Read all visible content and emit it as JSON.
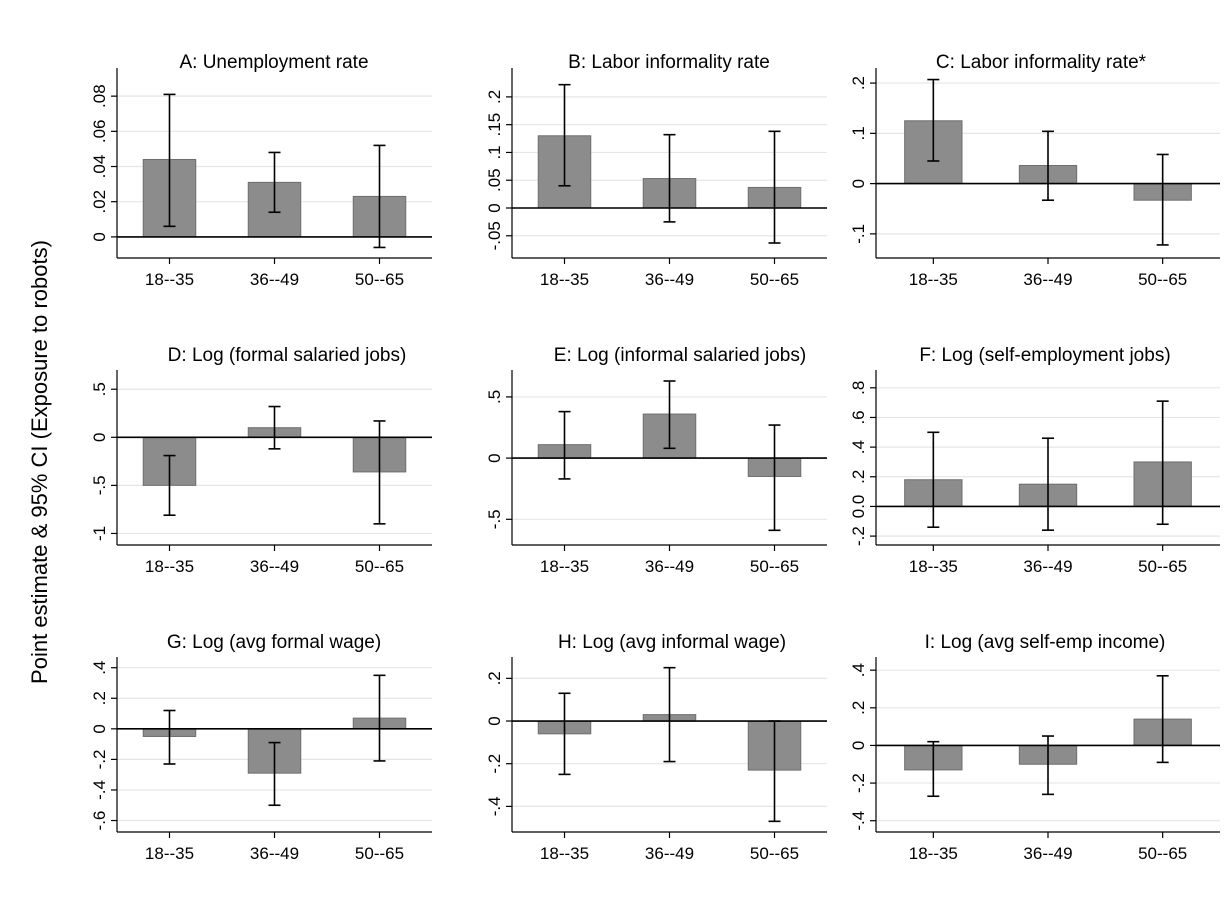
{
  "figure": {
    "ylabel": "Point estimate & 95% CI (Exposure to robots)"
  },
  "chart_data": [
    {
      "type": "bar",
      "title": "A: Unemployment rate",
      "categories": [
        "18--35",
        "36--49",
        "50--65"
      ],
      "values": [
        0.044,
        0.031,
        0.023
      ],
      "ci_lower": [
        0.006,
        0.014,
        -0.006
      ],
      "ci_upper": [
        0.081,
        0.048,
        0.052
      ],
      "yticks": [
        0,
        0.02,
        0.04,
        0.06,
        0.08
      ],
      "yticklabels": [
        "0",
        ".02",
        ".04",
        ".06",
        ".08"
      ],
      "ylim": [
        -0.012,
        0.096
      ],
      "grid": true
    },
    {
      "type": "bar",
      "title": "B: Labor informality rate",
      "categories": [
        "18--35",
        "36--49",
        "50--65"
      ],
      "values": [
        0.13,
        0.053,
        0.037
      ],
      "ci_lower": [
        0.04,
        -0.025,
        -0.063
      ],
      "ci_upper": [
        0.222,
        0.132,
        0.138
      ],
      "yticks": [
        -0.05,
        0,
        0.05,
        0.1,
        0.15,
        0.2
      ],
      "yticklabels": [
        "-.05",
        "0",
        ".05",
        ".1",
        ".15",
        ".2"
      ],
      "ylim": [
        -0.09,
        0.252
      ],
      "grid": true
    },
    {
      "type": "bar",
      "title": "C: Labor informality rate*",
      "categories": [
        "18--35",
        "36--49",
        "50--65"
      ],
      "values": [
        0.125,
        0.036,
        -0.033
      ],
      "ci_lower": [
        0.045,
        -0.033,
        -0.122
      ],
      "ci_upper": [
        0.207,
        0.104,
        0.058
      ],
      "yticks": [
        -0.1,
        0,
        0.1,
        0.2
      ],
      "yticklabels": [
        "-.1",
        "0",
        ".1",
        ".2"
      ],
      "ylim": [
        -0.148,
        0.23
      ],
      "grid": true
    },
    {
      "type": "bar",
      "title": "D: Log (formal salaried jobs)",
      "categories": [
        "18--35",
        "36--49",
        "50--65"
      ],
      "values": [
        -0.5,
        0.1,
        -0.36
      ],
      "ci_lower": [
        -0.81,
        -0.12,
        -0.9
      ],
      "ci_upper": [
        -0.19,
        0.32,
        0.17
      ],
      "yticks": [
        -1,
        -0.5,
        0,
        0.5
      ],
      "yticklabels": [
        "-1",
        "-.5",
        "0",
        ".5"
      ],
      "ylim": [
        -1.12,
        0.7
      ],
      "grid": true
    },
    {
      "type": "bar",
      "title": "E: Log (informal salaried jobs)",
      "categories": [
        "18--35",
        "36--49",
        "50--65"
      ],
      "values": [
        0.11,
        0.36,
        -0.15
      ],
      "ci_lower": [
        -0.17,
        0.08,
        -0.59
      ],
      "ci_upper": [
        0.38,
        0.63,
        0.27
      ],
      "yticks": [
        -0.5,
        0,
        0.5
      ],
      "yticklabels": [
        "-.5",
        "0",
        ".5"
      ],
      "ylim": [
        -0.71,
        0.72
      ],
      "grid": true
    },
    {
      "type": "bar",
      "title": "F: Log (self-employment jobs)",
      "categories": [
        "18--35",
        "36--49",
        "50--65"
      ],
      "values": [
        0.18,
        0.15,
        0.3
      ],
      "ci_lower": [
        -0.14,
        -0.16,
        -0.12
      ],
      "ci_upper": [
        0.5,
        0.46,
        0.71
      ],
      "yticks": [
        -0.2,
        0,
        0.2,
        0.4,
        0.6,
        0.8
      ],
      "yticklabels": [
        "-.2",
        "0.0",
        ".2",
        ".4",
        ".6",
        ".8"
      ],
      "ylim": [
        -0.26,
        0.92
      ],
      "grid": true
    },
    {
      "type": "bar",
      "title": "G: Log (avg formal wage)",
      "categories": [
        "18--35",
        "36--49",
        "50--65"
      ],
      "values": [
        -0.05,
        -0.29,
        0.07
      ],
      "ci_lower": [
        -0.23,
        -0.5,
        -0.21
      ],
      "ci_upper": [
        0.12,
        -0.09,
        0.35
      ],
      "yticks": [
        -0.6,
        -0.4,
        -0.2,
        0,
        0.2,
        0.4
      ],
      "yticklabels": [
        "-.6",
        "-.4",
        "-.2",
        "0",
        ".2",
        ".4"
      ],
      "ylim": [
        -0.675,
        0.47
      ],
      "grid": true
    },
    {
      "type": "bar",
      "title": "H: Log (avg informal wage)",
      "categories": [
        "18--35",
        "36--49",
        "50--65"
      ],
      "values": [
        -0.06,
        0.03,
        -0.23
      ],
      "ci_lower": [
        -0.25,
        -0.19,
        -0.47
      ],
      "ci_upper": [
        0.13,
        0.25,
        0.0
      ],
      "yticks": [
        -0.4,
        -0.2,
        0,
        0.2
      ],
      "yticklabels": [
        "-.4",
        "-.2",
        "0",
        ".2"
      ],
      "ylim": [
        -0.52,
        0.3
      ],
      "grid": true
    },
    {
      "type": "bar",
      "title": "I: Log (avg self-emp income)",
      "categories": [
        "18--35",
        "36--49",
        "50--65"
      ],
      "values": [
        -0.13,
        -0.1,
        0.14
      ],
      "ci_lower": [
        -0.27,
        -0.26,
        -0.09
      ],
      "ci_upper": [
        0.02,
        0.05,
        0.37
      ],
      "yticks": [
        -0.4,
        -0.2,
        0,
        0.2,
        0.4
      ],
      "yticklabels": [
        "-.4",
        "-.2",
        "0",
        ".2",
        ".4"
      ],
      "ylim": [
        -0.46,
        0.47
      ],
      "grid": true
    }
  ]
}
